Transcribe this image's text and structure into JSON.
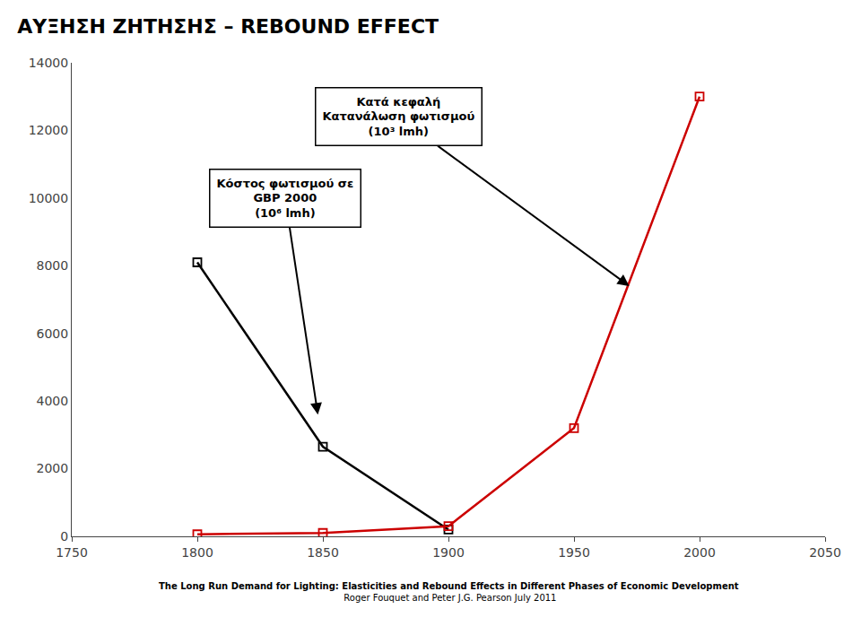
{
  "chart_data": {
    "type": "line",
    "title": "ΑΥΞΗΣΗ ΖΗΤΗΣΗΣ – REBOUND EFFECT",
    "footer": [
      "The Long Run Demand for Lighting: Elasticities and Rebound Effects in Different Phases of Economic Development",
      " Roger Fouquet and Peter J.G. Pearson July 2011"
    ],
    "xlim": [
      1750,
      2050
    ],
    "xticks": [
      1750,
      1800,
      1850,
      1900,
      1950,
      2000,
      2050
    ],
    "ylim": [
      0,
      14000
    ],
    "yticks": [
      0,
      2000,
      4000,
      6000,
      8000,
      10000,
      12000,
      14000
    ],
    "grid": false,
    "marker": "square-open",
    "series": [
      {
        "color": "#000000",
        "x": [
          1800,
          1850,
          1900
        ],
        "values": [
          8100,
          2650,
          200
        ]
      },
      {
        "color": "#cc0000",
        "x": [
          1800,
          1850,
          1900,
          1950,
          2000
        ],
        "values": [
          60,
          100,
          300,
          3200,
          13000
        ]
      }
    ],
    "annotations": [
      {
        "text": "Kόστος φωτισμού σε\nGBP 2000\n(10⁶ lmh)",
        "x": 1848,
        "y": 3600,
        "text_x": 1835,
        "text_y": 10000
      },
      {
        "text": "Kατά κεφαλή\nKατανάλωση φωτισμού\n(10³ lmh)",
        "x": 1972,
        "y": 7400,
        "text_x": 1880,
        "text_y": 12400
      }
    ]
  }
}
